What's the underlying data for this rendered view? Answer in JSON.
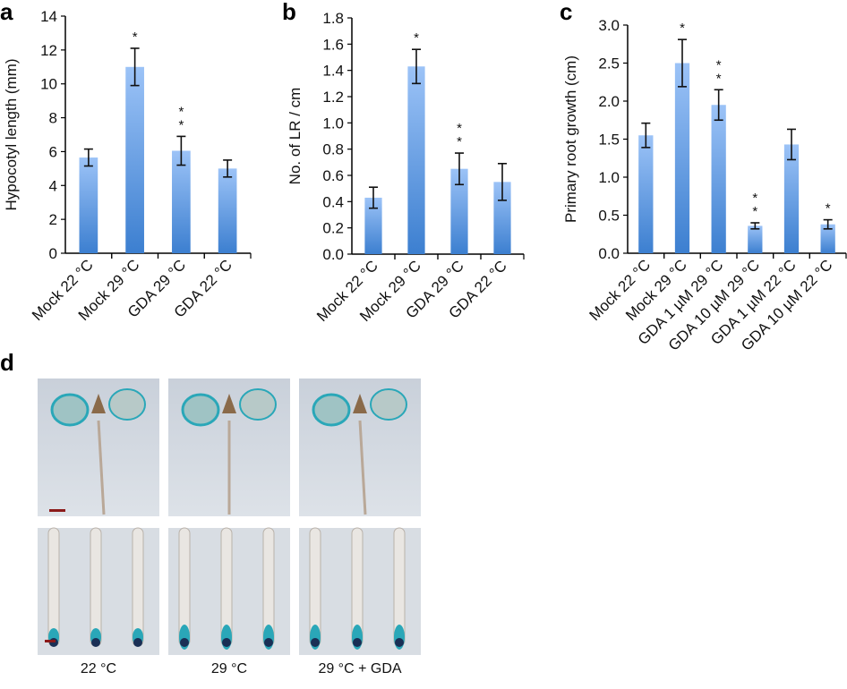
{
  "chart_data": [
    {
      "panel": "a",
      "type": "bar",
      "ylabel": "Hypocotyl length (mm)",
      "ylim": [
        0,
        14
      ],
      "yticks": [
        "0",
        "2",
        "4",
        "6",
        "8",
        "10",
        "12",
        "14"
      ],
      "categories": [
        "Mock 22 °C",
        "Mock 29 °C",
        "GDA 29 °C",
        "GDA 22 °C"
      ],
      "values": [
        5.65,
        11.0,
        6.05,
        5.0
      ],
      "errors": [
        0.5,
        1.1,
        0.85,
        0.5
      ],
      "significance": [
        "",
        "*",
        "**",
        ""
      ],
      "bar_color_top": "#9cc3f7",
      "bar_color_bottom": "#3c7fd0"
    },
    {
      "panel": "b",
      "type": "bar",
      "ylabel": "No. of LR / cm",
      "ylim": [
        0,
        1.8
      ],
      "yticks": [
        "0.0",
        "0.2",
        "0.4",
        "0.6",
        "0.8",
        "1.0",
        "1.2",
        "1.4",
        "1.6",
        "1.8"
      ],
      "categories": [
        "Mock 22 °C",
        "Mock 29 °C",
        "GDA 29 °C",
        "GDA 22 °C"
      ],
      "values": [
        0.43,
        1.43,
        0.65,
        0.55
      ],
      "errors": [
        0.08,
        0.13,
        0.12,
        0.14
      ],
      "significance": [
        "",
        "*",
        "**",
        ""
      ],
      "bar_color_top": "#9cc3f7",
      "bar_color_bottom": "#3c7fd0"
    },
    {
      "panel": "c",
      "type": "bar",
      "ylabel": "Primary root growth (cm)",
      "ylim": [
        0,
        3.0
      ],
      "yticks": [
        "0.0",
        "0.5",
        "1.0",
        "1.5",
        "2.0",
        "2.5",
        "3.0"
      ],
      "categories": [
        "Mock 22 °C",
        "Mock 29 °C",
        "GDA 1 µM 29 °C",
        "GDA 10 µM 29 °C",
        "GDA 1 µM 22 °C",
        "GDA 10 µM 22 °C"
      ],
      "values": [
        1.55,
        2.5,
        1.95,
        0.36,
        1.43,
        0.38
      ],
      "errors": [
        0.16,
        0.31,
        0.2,
        0.04,
        0.2,
        0.06
      ],
      "significance": [
        "",
        "*",
        "**",
        "**",
        "",
        "*"
      ],
      "bar_color_top": "#9cc3f7",
      "bar_color_bottom": "#3c7fd0"
    }
  ],
  "panel_d": {
    "label": "d",
    "captions": [
      "22 °C",
      "29 °C",
      "29 °C + GDA"
    ],
    "stain_color": "#2aa7b8",
    "scale_bar_color": "#8b1a1a"
  }
}
